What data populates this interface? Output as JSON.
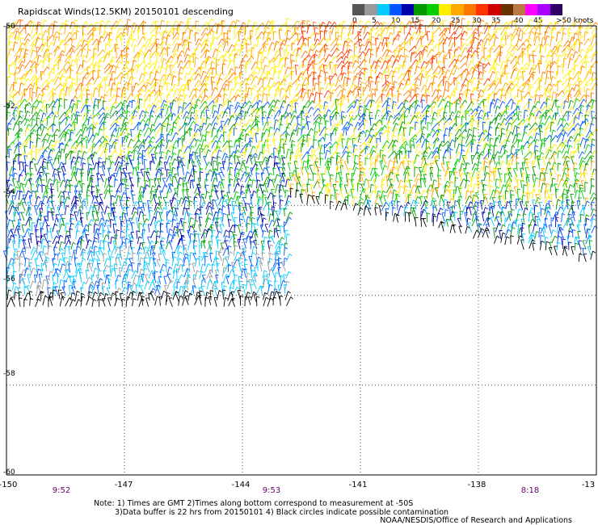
{
  "title": "Rapidscat Winds(12.5KM) 20150101 descending",
  "scale": {
    "labels": [
      "0",
      "5",
      "10",
      "15",
      "20",
      "25",
      "30",
      "35",
      "40",
      "45",
      ">50 knots"
    ],
    "colors": [
      "#555555",
      "#999999",
      "#00ccff",
      "#0055ff",
      "#0000aa",
      "#009900",
      "#00cc00",
      "#ffee00",
      "#ffaa00",
      "#ff7700",
      "#ff3300",
      "#cc0000",
      "#663300",
      "#bb7744",
      "#ff00ff",
      "#aa00ff",
      "#330066"
    ]
  },
  "axes": {
    "lat_labels": [
      "-50",
      "-52",
      "-54",
      "-56",
      "-58",
      "-60"
    ],
    "lon_labels": [
      "-150",
      "-147",
      "-144",
      "-141",
      "-138",
      "-13"
    ],
    "lat_range": [
      -60,
      -50
    ],
    "lon_range": [
      -150,
      -135
    ]
  },
  "time_labels": [
    "9:52",
    "9:53",
    "8:18"
  ],
  "notes": [
    "Note: 1) Times are GMT 2)Times along bottom correspond to measurement at -50S",
    "3)Data buffer is 22 hrs from 20150101 4) Black circles indicate possible contamination"
  ],
  "credit": "NOAA/NESDIS/Office of Research and Applications"
}
